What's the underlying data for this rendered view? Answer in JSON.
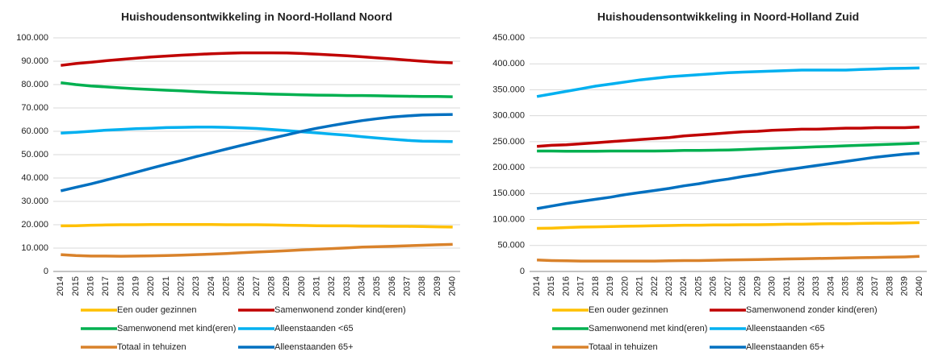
{
  "chart_data": [
    {
      "type": "line",
      "title": "Huishoudensontwikkeling in Noord-Holland Noord",
      "categories": [
        "2014",
        "2015",
        "2016",
        "2017",
        "2018",
        "2019",
        "2020",
        "2021",
        "2022",
        "2023",
        "2024",
        "2025",
        "2026",
        "2027",
        "2028",
        "2029",
        "2030",
        "2031",
        "2032",
        "2033",
        "2034",
        "2035",
        "2036",
        "2037",
        "2038",
        "2039",
        "2040"
      ],
      "ylim": [
        0,
        100000
      ],
      "yticks": [
        0,
        {
          "value": 10000,
          "label": "10.000"
        },
        {
          "value": 20000,
          "label": "20.000"
        },
        {
          "value": 30000,
          "label": "30.000"
        },
        {
          "value": 40000,
          "label": "40.000"
        },
        {
          "value": 50000,
          "label": "50.000"
        },
        {
          "value": 60000,
          "label": "60.000"
        },
        {
          "value": 70000,
          "label": "70.000"
        },
        {
          "value": 80000,
          "label": "80.000"
        },
        {
          "value": 90000,
          "label": "90.000"
        },
        {
          "value": 100000,
          "label": "100.000"
        }
      ],
      "grid": true,
      "series": [
        {
          "name": "Een ouder gezinnen",
          "color": "#ffc000",
          "values": [
            19500,
            19600,
            19800,
            19900,
            20000,
            20000,
            20100,
            20100,
            20100,
            20100,
            20100,
            20000,
            20000,
            20000,
            19900,
            19800,
            19700,
            19600,
            19500,
            19500,
            19400,
            19400,
            19300,
            19300,
            19200,
            19100,
            19000
          ]
        },
        {
          "name": "Samenwonend zonder kind(eren)",
          "color": "#c00000",
          "values": [
            88200,
            89000,
            89600,
            90200,
            90800,
            91300,
            91800,
            92200,
            92600,
            92900,
            93200,
            93400,
            93600,
            93600,
            93600,
            93500,
            93300,
            93000,
            92700,
            92300,
            91900,
            91400,
            91000,
            90500,
            90000,
            89600,
            89300
          ]
        },
        {
          "name": "Samenwonend met kind(eren)",
          "color": "#00b050",
          "values": [
            80800,
            80000,
            79400,
            79000,
            78600,
            78200,
            77900,
            77600,
            77300,
            77000,
            76700,
            76500,
            76300,
            76100,
            75900,
            75800,
            75600,
            75500,
            75400,
            75300,
            75300,
            75200,
            75100,
            75000,
            74900,
            74900,
            74800
          ]
        },
        {
          "name": "Alleenstaanden <65",
          "color": "#00b0f0",
          "values": [
            59200,
            59600,
            60000,
            60500,
            60800,
            61100,
            61300,
            61600,
            61700,
            61800,
            61800,
            61700,
            61500,
            61200,
            60800,
            60300,
            59800,
            59300,
            58800,
            58300,
            57700,
            57100,
            56600,
            56100,
            55800,
            55700,
            55600
          ]
        },
        {
          "name": "Totaal in tehuizen",
          "color": "#d9822b",
          "values": [
            7200,
            6800,
            6600,
            6600,
            6500,
            6600,
            6700,
            6800,
            7000,
            7200,
            7400,
            7700,
            8000,
            8300,
            8600,
            8900,
            9200,
            9500,
            9800,
            10100,
            10400,
            10600,
            10800,
            11000,
            11200,
            11400,
            11600
          ]
        },
        {
          "name": "Alleenstaanden 65+",
          "color": "#0070c0",
          "values": [
            34500,
            36000,
            37500,
            39100,
            40800,
            42500,
            44200,
            45900,
            47500,
            49200,
            50800,
            52400,
            54000,
            55500,
            57000,
            58500,
            60000,
            61300,
            62500,
            63600,
            64600,
            65400,
            66100,
            66600,
            67000,
            67100,
            67200
          ]
        }
      ]
    },
    {
      "type": "line",
      "title": "Huishoudensontwikkeling in Noord-Holland Zuid",
      "categories": [
        "2014",
        "2015",
        "2016",
        "2017",
        "2018",
        "2019",
        "2020",
        "2021",
        "2022",
        "2023",
        "2024",
        "2025",
        "2026",
        "2027",
        "2028",
        "2029",
        "2030",
        "2031",
        "2032",
        "2033",
        "2034",
        "2035",
        "2036",
        "2037",
        "2038",
        "2039",
        "2040"
      ],
      "ylim": [
        0,
        450000
      ],
      "yticks": [
        0,
        {
          "value": 50000,
          "label": "50.000"
        },
        {
          "value": 100000,
          "label": "100.000"
        },
        {
          "value": 150000,
          "label": "150.000"
        },
        {
          "value": 200000,
          "label": "200.000"
        },
        {
          "value": 250000,
          "label": "250.000"
        },
        {
          "value": 300000,
          "label": "300.000"
        },
        {
          "value": 350000,
          "label": "350.000"
        },
        {
          "value": 400000,
          "label": "400.000"
        },
        {
          "value": 450000,
          "label": "450.000"
        }
      ],
      "grid": true,
      "series": [
        {
          "name": "Een ouder gezinnen",
          "color": "#ffc000",
          "values": [
            83000,
            83500,
            84500,
            85500,
            86000,
            86500,
            87000,
            87500,
            88000,
            88500,
            89000,
            89000,
            89500,
            89500,
            90000,
            90000,
            90500,
            91000,
            91000,
            91500,
            92000,
            92000,
            92500,
            93000,
            93000,
            93500,
            94000
          ]
        },
        {
          "name": "Samenwonend zonder kind(eren)",
          "color": "#c00000",
          "values": [
            241000,
            243000,
            244000,
            246000,
            248000,
            250000,
            252000,
            254000,
            256000,
            258000,
            261000,
            263000,
            265000,
            267000,
            269000,
            270000,
            272000,
            273000,
            274000,
            274000,
            275000,
            276000,
            276000,
            277000,
            277000,
            277000,
            278000
          ]
        },
        {
          "name": "Samenwonend met kind(eren)",
          "color": "#00b050",
          "values": [
            232000,
            232000,
            231500,
            231500,
            231500,
            232000,
            232000,
            232000,
            232000,
            232500,
            233000,
            233000,
            233500,
            234000,
            235000,
            236000,
            237000,
            238000,
            239000,
            240000,
            241000,
            242000,
            243000,
            244000,
            245000,
            246000,
            247000
          ]
        },
        {
          "name": "Alleenstaanden <65",
          "color": "#00b0f0",
          "values": [
            337000,
            342000,
            347000,
            352000,
            357000,
            361000,
            365000,
            369000,
            372000,
            375000,
            377000,
            379000,
            381000,
            383000,
            384000,
            385000,
            386000,
            387000,
            388000,
            388000,
            388000,
            388000,
            389000,
            390000,
            391000,
            391500,
            392000
          ]
        },
        {
          "name": "Totaal in tehuizen",
          "color": "#d9822b",
          "values": [
            22000,
            21000,
            20500,
            20000,
            20000,
            20000,
            20000,
            20000,
            20000,
            20500,
            21000,
            21000,
            21500,
            22000,
            22500,
            23000,
            23500,
            24000,
            24500,
            25000,
            25500,
            26000,
            26500,
            27000,
            27500,
            28000,
            29000
          ]
        },
        {
          "name": "Alleenstaanden 65+",
          "color": "#0070c0",
          "values": [
            121000,
            126000,
            131000,
            135000,
            139000,
            143000,
            148000,
            152000,
            156000,
            160000,
            165000,
            169000,
            174000,
            178000,
            183000,
            187000,
            192000,
            196000,
            200000,
            204000,
            208000,
            212000,
            216000,
            220000,
            223000,
            226000,
            228000
          ]
        }
      ]
    }
  ]
}
